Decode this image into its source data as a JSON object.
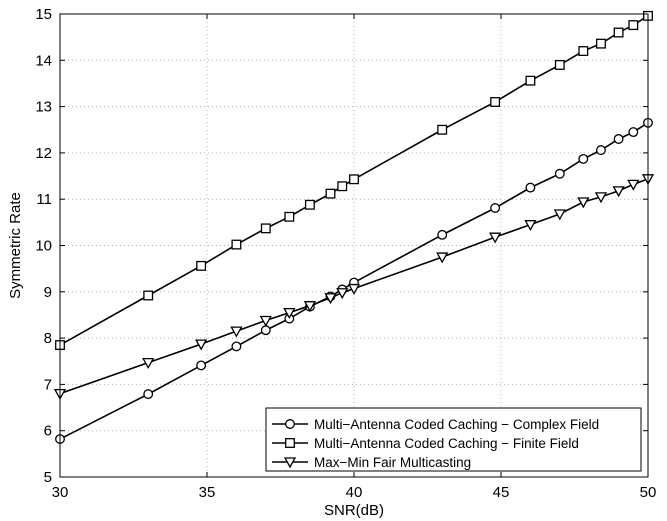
{
  "chart_data": {
    "type": "line",
    "title": "",
    "xlabel": "SNR(dB)",
    "ylabel": "Symmetric Rate",
    "xlim": [
      30,
      50
    ],
    "ylim": [
      5,
      15
    ],
    "xticks": [
      30,
      35,
      40,
      45,
      50
    ],
    "yticks": [
      5,
      6,
      7,
      8,
      9,
      10,
      11,
      12,
      13,
      14,
      15
    ],
    "grid": true,
    "legend_position": "bottom-right",
    "series": [
      {
        "name": "Multi−Antenna Coded Caching − Complex Field",
        "marker": "circle",
        "x": [
          30,
          33,
          34.8,
          36,
          37,
          37.8,
          38.5,
          39.2,
          39.6,
          40,
          43,
          44.8,
          46,
          47,
          47.8,
          48.4,
          49,
          49.5,
          50
        ],
        "y": [
          5.82,
          6.79,
          7.41,
          7.82,
          8.17,
          8.42,
          8.68,
          8.9,
          9.05,
          9.2,
          10.23,
          10.81,
          11.25,
          11.55,
          11.87,
          12.06,
          12.3,
          12.45,
          12.65
        ]
      },
      {
        "name": "Multi−Antenna Coded Caching − Finite Field",
        "marker": "square",
        "x": [
          30,
          33,
          34.8,
          36,
          37,
          37.8,
          38.5,
          39.2,
          39.6,
          40,
          43,
          44.8,
          46,
          47,
          47.8,
          48.4,
          49,
          49.5,
          50
        ],
        "y": [
          7.85,
          8.92,
          9.56,
          10.02,
          10.37,
          10.62,
          10.88,
          11.12,
          11.28,
          11.43,
          12.5,
          13.1,
          13.56,
          13.9,
          14.2,
          14.36,
          14.6,
          14.76,
          14.96
        ]
      },
      {
        "name": "Max−Min Fair Multicasting",
        "marker": "triangle-down",
        "x": [
          30,
          33,
          34.8,
          36,
          37,
          37.8,
          38.5,
          39.2,
          39.6,
          40,
          43,
          44.8,
          46,
          47,
          47.8,
          48.4,
          49,
          49.5,
          50
        ],
        "y": [
          6.8,
          7.47,
          7.87,
          8.15,
          8.38,
          8.55,
          8.7,
          8.87,
          8.98,
          9.07,
          9.75,
          10.18,
          10.45,
          10.68,
          10.94,
          11.05,
          11.18,
          11.32,
          11.44
        ]
      }
    ]
  }
}
